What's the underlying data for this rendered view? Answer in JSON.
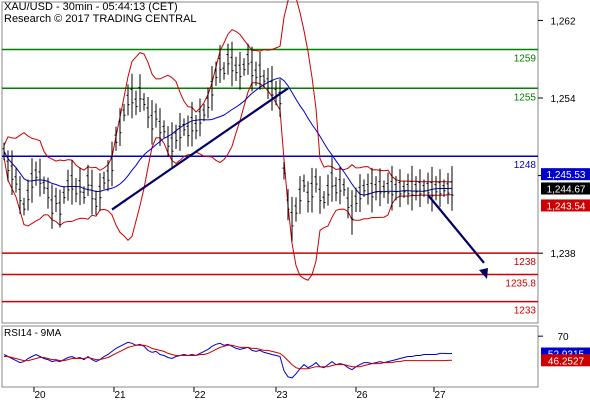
{
  "header": {
    "instrument_line": "XAU/USD - 30min - 05:44:13 (CET)",
    "research_line": "Research © 2017 TRADING CENTRAL"
  },
  "chart_data": [
    {
      "type": "line",
      "panel": "price",
      "x_ticks": [
        "20",
        "21",
        "22",
        "23",
        "26",
        "27"
      ],
      "y_ticks": [
        1262,
        1254,
        1246,
        1238
      ],
      "y_tick_labels": [
        "1,262",
        "1,254",
        "1,246",
        "1,238"
      ],
      "ylim": [
        1230.8,
        1263.9
      ],
      "horizontal_levels": [
        {
          "label": "1259",
          "value": 1259,
          "color": "#008000"
        },
        {
          "label": "1255",
          "value": 1255,
          "color": "#008000"
        },
        {
          "label": "1248",
          "value": 1248,
          "color": "#0000cc"
        },
        {
          "label": "1238",
          "value": 1238,
          "color": "#cc0000"
        },
        {
          "label": "1235.8",
          "value": 1235.8,
          "color": "#cc0000"
        },
        {
          "label": "1233",
          "value": 1233,
          "color": "#cc0000"
        }
      ],
      "price_tags": [
        {
          "label": "1,245.53",
          "value": 1245.53,
          "color": "#0000cc"
        },
        {
          "label": "1,244.67",
          "value": 1244.67,
          "color": "#000000"
        },
        {
          "label": "1,243.54",
          "value": 1243.54,
          "color": "#cc0000"
        }
      ],
      "series": [
        {
          "color": "#000000",
          "x": [
            0,
            1,
            2,
            3,
            4,
            5,
            6,
            7,
            8,
            9,
            10,
            11,
            12,
            13,
            14,
            15,
            16,
            17,
            18,
            19,
            20,
            21,
            22,
            23,
            24,
            25,
            26,
            27,
            28,
            29,
            30,
            31,
            32,
            33,
            34,
            35,
            36,
            37,
            38,
            39,
            40,
            41,
            42,
            43,
            44,
            45,
            46,
            47,
            48,
            49,
            50,
            51,
            52,
            53,
            54,
            55,
            56,
            57,
            58,
            59,
            60,
            61,
            62,
            63,
            64,
            65,
            66,
            67,
            68,
            69,
            70,
            71,
            72,
            73,
            74,
            75,
            76,
            77,
            78,
            79,
            80,
            81,
            82,
            83,
            84,
            85,
            86,
            87,
            88,
            89,
            90,
            91,
            92,
            93,
            94,
            95,
            96,
            97,
            98,
            99,
            100,
            101,
            102,
            103,
            104,
            105,
            106,
            107,
            108,
            109,
            110,
            111,
            112
          ],
          "values": [
            1248.5,
            1247.0,
            1246.3,
            1245.5,
            1244.0,
            1242.8,
            1244.0,
            1245.5,
            1246.2,
            1245.8,
            1245.0,
            1244.2,
            1242.8,
            1243.5,
            1242.6,
            1244.0,
            1245.0,
            1245.3,
            1244.5,
            1244.9,
            1244.0,
            1245.5,
            1244.3,
            1243.2,
            1244.3,
            1245.5,
            1246.0,
            1247.2,
            1249.8,
            1251.0,
            1252.5,
            1253.8,
            1254.2,
            1253.5,
            1254.5,
            1253.6,
            1252.5,
            1251.5,
            1252.2,
            1251.0,
            1250.8,
            1249.5,
            1249.2,
            1250.0,
            1250.5,
            1251.0,
            1250.6,
            1251.3,
            1251.0,
            1252.0,
            1252.5,
            1253.5,
            1255.0,
            1256.5,
            1257.5,
            1256.8,
            1258.0,
            1257.5,
            1257.0,
            1256.8,
            1257.2,
            1258.0,
            1257.0,
            1256.5,
            1256.8,
            1256.0,
            1255.5,
            1255.0,
            1254.5,
            1254.0,
            1246.5,
            1243.0,
            1241.5,
            1242.5,
            1244.0,
            1245.2,
            1243.8,
            1244.5,
            1245.5,
            1244.0,
            1243.5,
            1244.5,
            1245.6,
            1244.6,
            1245.0,
            1244.8,
            1243.2,
            1242.2,
            1243.5,
            1244.2,
            1244.7,
            1244.6,
            1244.5,
            1244.7,
            1244.8,
            1244.6,
            1244.7,
            1244.7,
            1244.7,
            1244.7,
            1244.6,
            1244.6,
            1244.7,
            1244.7,
            1244.7,
            1244.7,
            1244.7,
            1244.6,
            1244.7,
            1244.7,
            1244.7,
            1244.67,
            1244.67
          ]
        }
      ]
    },
    {
      "type": "line",
      "panel": "rsi",
      "title": "RSI14 - 9MA",
      "y_ticks": [
        70
      ],
      "y_tick_labels": [
        "70"
      ],
      "ylim": [
        20,
        80
      ],
      "value_tags": [
        {
          "label": "52.9315",
          "value": 52.9315,
          "color": "#0000cc"
        },
        {
          "label": "46.2527",
          "value": 46.2527,
          "color": "#cc0000"
        }
      ],
      "series": [
        {
          "color": "#0000cc",
          "values": [
            52,
            50,
            48,
            46,
            44,
            45,
            48,
            50,
            52,
            50,
            48,
            47,
            45,
            46,
            45,
            47,
            49,
            50,
            48,
            49,
            47,
            50,
            47,
            45,
            47,
            50,
            52,
            55,
            58,
            60,
            62,
            64,
            63,
            61,
            62,
            60,
            56,
            54,
            55,
            52,
            51,
            49,
            48,
            50,
            51,
            52,
            51,
            52,
            51,
            53,
            55,
            57,
            60,
            62,
            63,
            61,
            62,
            60,
            58,
            57,
            58,
            59,
            56,
            55,
            56,
            54,
            53,
            52,
            51,
            50,
            36,
            30,
            29,
            33,
            38,
            42,
            39,
            41,
            44,
            40,
            39,
            42,
            45,
            42,
            43,
            42,
            39,
            37,
            40,
            42,
            44,
            44,
            43,
            44,
            45,
            44,
            45,
            46,
            47,
            48,
            49,
            50,
            50,
            51,
            51,
            52,
            52,
            52,
            52,
            53,
            53,
            52.9,
            52.93
          ]
        },
        {
          "color": "#cc0000",
          "values": [
            50,
            50,
            49,
            48,
            47,
            46,
            46,
            47,
            48,
            49,
            49,
            48,
            47,
            47,
            46,
            46,
            47,
            48,
            48,
            48,
            48,
            49,
            48,
            47,
            47,
            48,
            49,
            51,
            53,
            55,
            57,
            59,
            60,
            61,
            61,
            61,
            60,
            58,
            57,
            56,
            55,
            53,
            52,
            51,
            51,
            51,
            51,
            51,
            51,
            52,
            52,
            53,
            55,
            57,
            59,
            60,
            61,
            61,
            60,
            59,
            59,
            59,
            58,
            58,
            57,
            56,
            56,
            55,
            54,
            53,
            50,
            46,
            42,
            39,
            38,
            38,
            38,
            39,
            40,
            40,
            40,
            40,
            41,
            42,
            42,
            42,
            41,
            40,
            40,
            40,
            41,
            42,
            43,
            43,
            43,
            44,
            44,
            44,
            45,
            45,
            46,
            46,
            46,
            46,
            46,
            46,
            46,
            46,
            46,
            46,
            46,
            46.2,
            46.25
          ]
        }
      ]
    }
  ]
}
